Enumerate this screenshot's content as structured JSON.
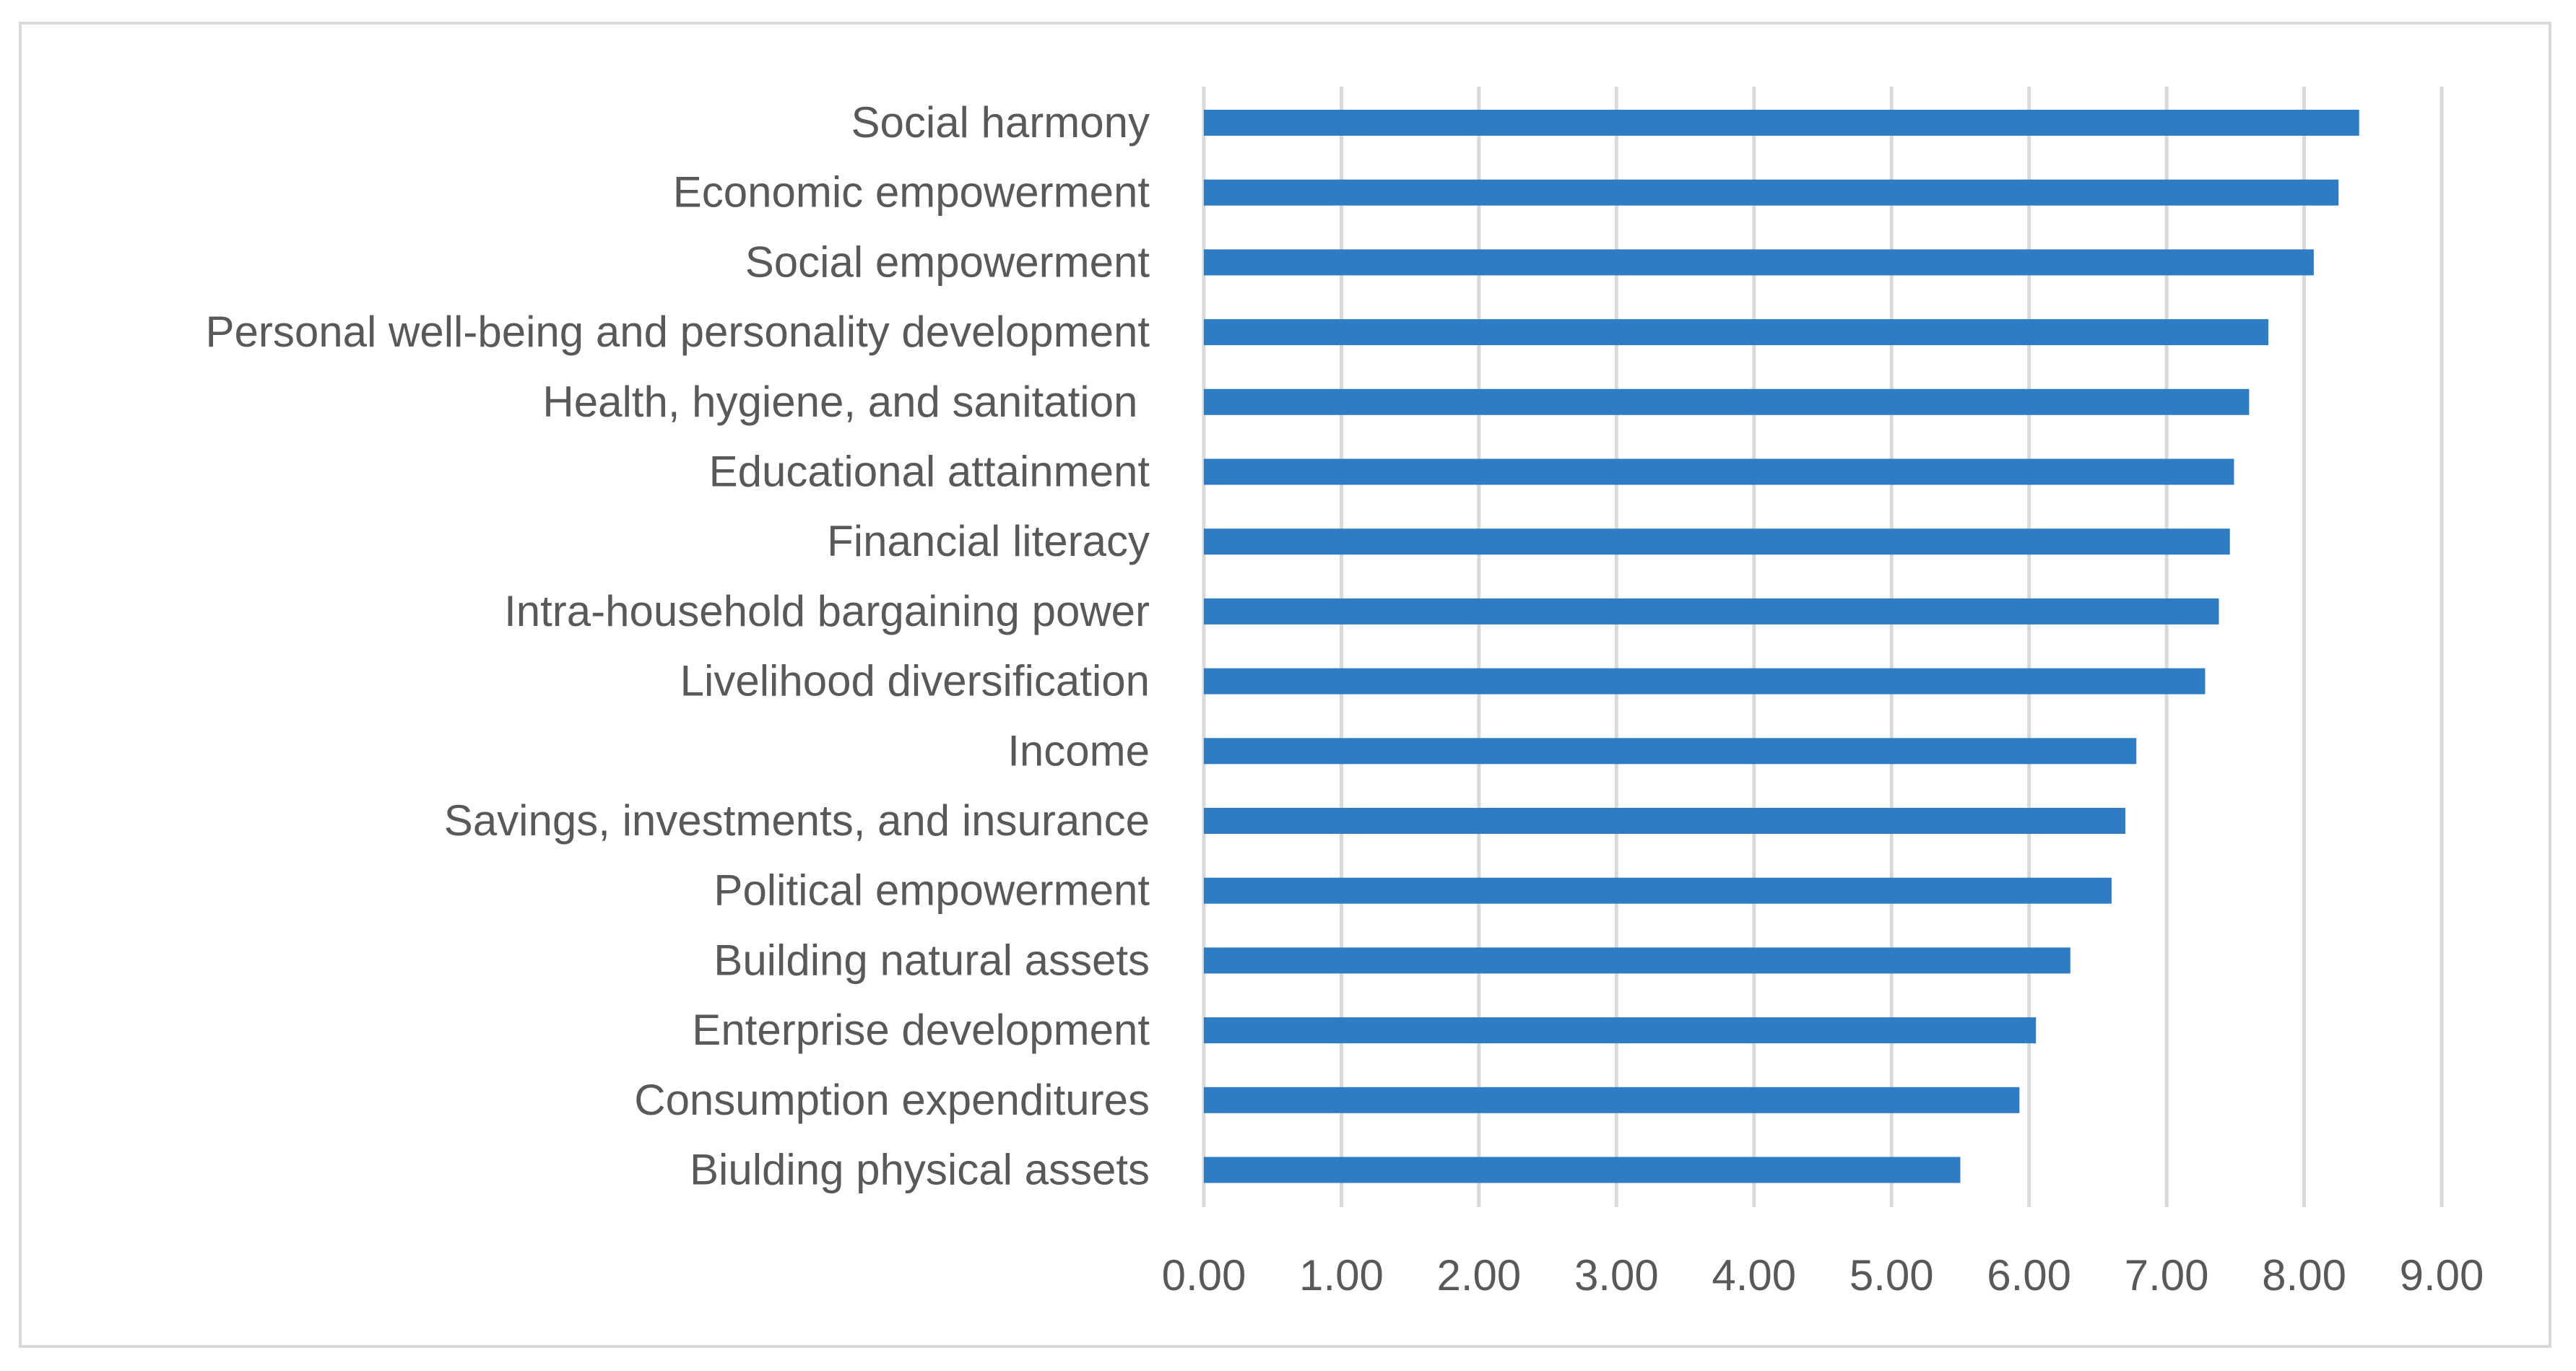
{
  "chart_data": {
    "type": "bar",
    "orientation": "horizontal",
    "categories": [
      "Social harmony",
      "Economic empowerment",
      "Social empowerment",
      "Personal well-being and personality development",
      "Health, hygiene, and sanitation ",
      "Educational attainment",
      "Financial literacy",
      "Intra-household bargaining power",
      "Livelihood diversification",
      "Income",
      "Savings, investments, and insurance",
      "Political empowerment",
      "Building natural assets",
      "Enterprise development",
      "Consumption expenditures",
      "Biulding physical assets"
    ],
    "values": [
      8.4,
      8.25,
      8.07,
      7.74,
      7.6,
      7.49,
      7.46,
      7.38,
      7.28,
      6.78,
      6.7,
      6.6,
      6.3,
      6.05,
      5.93,
      5.5
    ],
    "xlim": [
      0,
      9
    ],
    "x_ticks": [
      "0.00",
      "1.00",
      "2.00",
      "3.00",
      "4.00",
      "5.00",
      "6.00",
      "7.00",
      "8.00",
      "9.00"
    ],
    "grid": "vertical",
    "legend": "none",
    "bar_color": "#2e7dc4",
    "title": "",
    "xlabel": "",
    "ylabel": ""
  }
}
